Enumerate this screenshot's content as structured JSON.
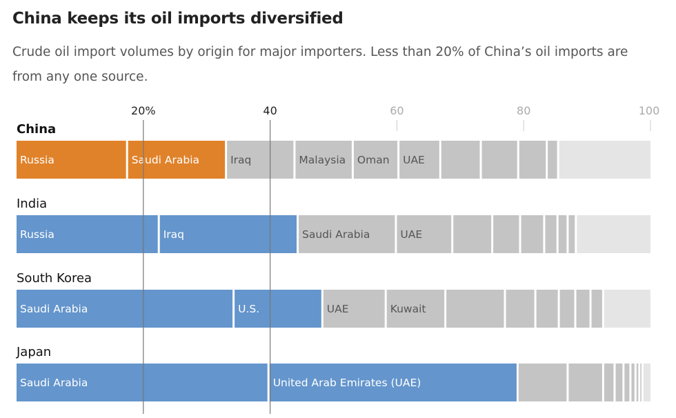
{
  "title": "China keeps its oil imports diversified",
  "subtitle": "Crude oil import volumes by origin for major importers. Less than 20% of China’s oil imports are from any one source.",
  "colors": {
    "highlight_china": "#e0822a",
    "highlight_other": "#6495cc",
    "other": "#c4c4c4",
    "rest": "#e5e5e5",
    "label_on_color": "#ffffff",
    "label_on_gray": "#555555",
    "gridline_bold": "#777777",
    "gridline_light": "#cccccc"
  },
  "chart_data": {
    "type": "bar",
    "orientation": "horizontal-stacked",
    "unit": "percent of crude oil imports",
    "xlim": [
      0,
      100
    ],
    "ticks": [
      {
        "value": 20,
        "label": "20%",
        "emphasis": true
      },
      {
        "value": 40,
        "label": "40",
        "emphasis": true
      },
      {
        "value": 60,
        "label": "60",
        "emphasis": false
      },
      {
        "value": 80,
        "label": "80",
        "emphasis": false
      },
      {
        "value": 100,
        "label": "100",
        "emphasis": false
      }
    ],
    "countries": [
      {
        "name": "China",
        "bold": true,
        "highlight_color": "#e0822a",
        "segments": [
          {
            "label": "Russia",
            "value": 17.6,
            "highlight": true
          },
          {
            "label": "Saudi Arabia",
            "value": 15.6,
            "highlight": true
          },
          {
            "label": "Iraq",
            "value": 10.8,
            "highlight": false
          },
          {
            "label": "Malaysia",
            "value": 9.2,
            "highlight": false
          },
          {
            "label": "Oman",
            "value": 7.2,
            "highlight": false
          },
          {
            "label": "UAE",
            "value": 6.6,
            "highlight": false
          },
          {
            "label": "",
            "value": 6.4,
            "highlight": false
          },
          {
            "label": "",
            "value": 5.9,
            "highlight": false
          },
          {
            "label": "",
            "value": 4.5,
            "highlight": false
          },
          {
            "label": "",
            "value": 1.8,
            "highlight": false
          },
          {
            "label": "",
            "value": 14.4,
            "rest": true
          }
        ]
      },
      {
        "name": "India",
        "bold": false,
        "highlight_color": "#6495cc",
        "segments": [
          {
            "label": "Russia",
            "value": 22.6,
            "highlight": true
          },
          {
            "label": "Iraq",
            "value": 21.9,
            "highlight": true
          },
          {
            "label": "Saudi Arabia",
            "value": 15.5,
            "highlight": false
          },
          {
            "label": "UAE",
            "value": 8.9,
            "highlight": false
          },
          {
            "label": "",
            "value": 6.3,
            "highlight": false
          },
          {
            "label": "",
            "value": 4.4,
            "highlight": false
          },
          {
            "label": "",
            "value": 3.8,
            "highlight": false
          },
          {
            "label": "",
            "value": 2.1,
            "highlight": false
          },
          {
            "label": "",
            "value": 1.6,
            "highlight": false
          },
          {
            "label": "",
            "value": 1.3,
            "highlight": false
          },
          {
            "label": "",
            "value": 11.6,
            "rest": true
          }
        ]
      },
      {
        "name": "South Korea",
        "bold": false,
        "highlight_color": "#6495cc",
        "segments": [
          {
            "label": "Saudi Arabia",
            "value": 34.4,
            "highlight": true
          },
          {
            "label": "U.S.",
            "value": 14.0,
            "highlight": true
          },
          {
            "label": "UAE",
            "value": 10.0,
            "highlight": false
          },
          {
            "label": "Kuwait",
            "value": 9.4,
            "highlight": false
          },
          {
            "label": "",
            "value": 9.4,
            "highlight": false
          },
          {
            "label": "",
            "value": 4.8,
            "highlight": false
          },
          {
            "label": "",
            "value": 3.7,
            "highlight": false
          },
          {
            "label": "",
            "value": 2.6,
            "highlight": false
          },
          {
            "label": "",
            "value": 2.4,
            "highlight": false
          },
          {
            "label": "",
            "value": 2.0,
            "highlight": false
          },
          {
            "label": "",
            "value": 7.3,
            "rest": true
          }
        ]
      },
      {
        "name": "Japan",
        "bold": false,
        "highlight_color": "#6495cc",
        "segments": [
          {
            "label": "Saudi Arabia",
            "value": 39.9,
            "highlight": true
          },
          {
            "label": "United Arab Emirates (UAE)",
            "value": 39.3,
            "highlight": true
          },
          {
            "label": "",
            "value": 7.9,
            "highlight": false
          },
          {
            "label": "",
            "value": 5.6,
            "highlight": false
          },
          {
            "label": "",
            "value": 1.8,
            "highlight": false
          },
          {
            "label": "",
            "value": 1.4,
            "highlight": false
          },
          {
            "label": "",
            "value": 1.1,
            "highlight": false
          },
          {
            "label": "",
            "value": 0.8,
            "highlight": false
          },
          {
            "label": "",
            "value": 0.6,
            "highlight": false
          },
          {
            "label": "",
            "value": 0.5,
            "highlight": false
          },
          {
            "label": "",
            "value": 1.1,
            "rest": true
          }
        ]
      }
    ]
  }
}
